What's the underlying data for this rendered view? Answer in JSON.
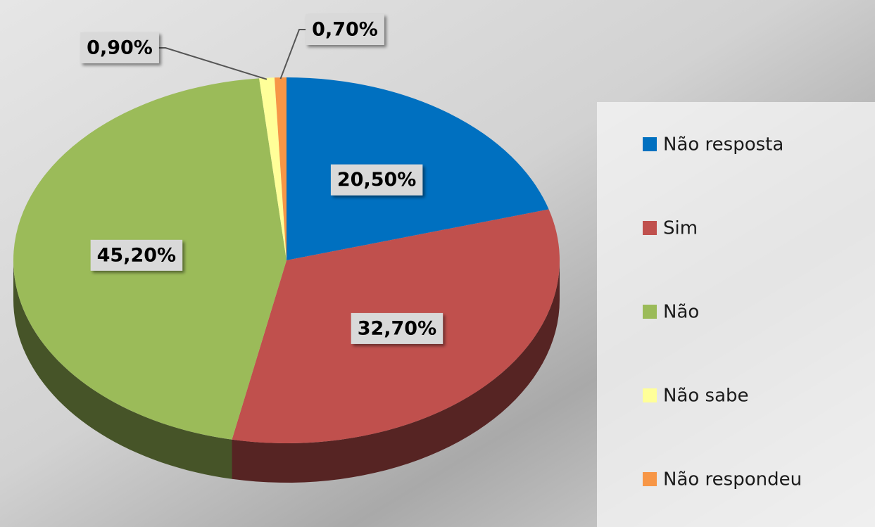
{
  "chart_data": {
    "type": "pie",
    "categories": [
      "Não resposta",
      "Sim",
      "Não",
      "Não sabe",
      "Não respondeu"
    ],
    "values": [
      20.5,
      32.7,
      45.2,
      0.9,
      0.7
    ],
    "value_labels": [
      "20,50%",
      "32,70%",
      "45,20%",
      "0,90%",
      "0,70%"
    ],
    "colors": [
      "#0070c0",
      "#c0504d",
      "#9bbb59",
      "#ffff99",
      "#f79646"
    ],
    "legend": "right"
  }
}
